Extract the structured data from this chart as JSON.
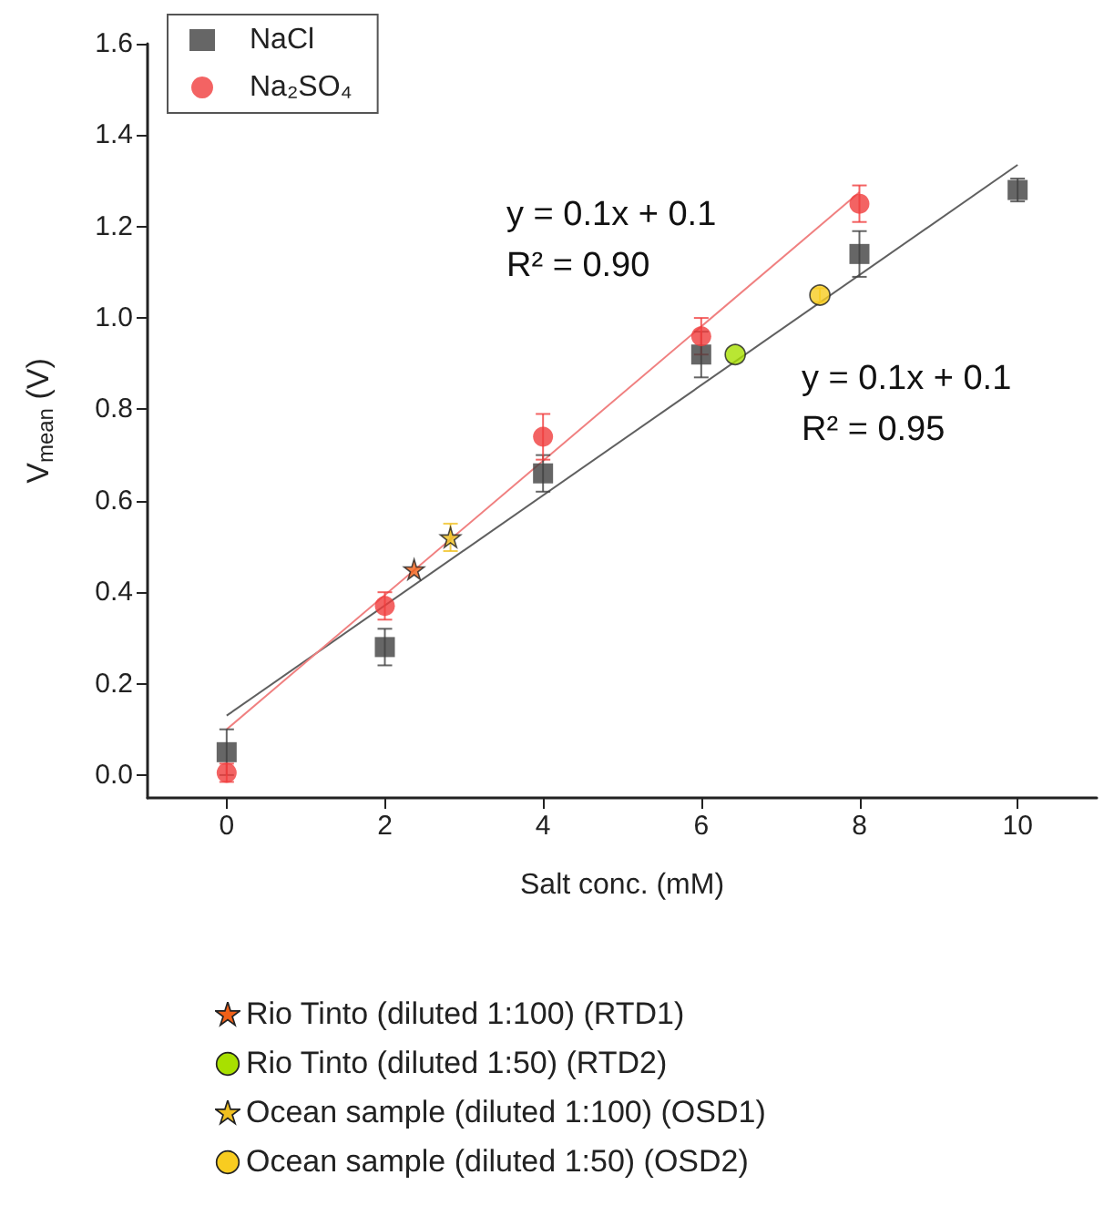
{
  "chart_data": {
    "type": "scatter",
    "xlabel": "Salt conc. (mM)",
    "ylabel": "V$_{mean}$ (V)",
    "x": [
      0,
      2,
      4,
      6,
      8,
      10
    ],
    "xlim": [
      -1,
      11
    ],
    "xticks": [
      0,
      2,
      4,
      6,
      8,
      10
    ],
    "ylim": [
      -0.05,
      1.6
    ],
    "yticks": [
      {
        "value": 0,
        "label": "0.0"
      },
      {
        "value": 0.2,
        "label": "0.2"
      },
      {
        "value": 0.4,
        "label": "0.4"
      },
      {
        "value": 0.6,
        "label": "0.6"
      },
      {
        "value": 0.8,
        "label": "0.8"
      },
      {
        "value": 1.0,
        "label": "1.0"
      },
      {
        "value": 1.2,
        "label": "1.2"
      },
      {
        "value": 1.4,
        "label": "1.4"
      },
      {
        "value": 1.6,
        "label": "1.6"
      }
    ],
    "legend": "bottom left",
    "grid": false,
    "series": [
      {
        "name": "NaCl",
        "color": "#404040",
        "marker": "square",
        "values": [
          0.05,
          0.28,
          0.66,
          0.92,
          1.14,
          1.28
        ],
        "errors": [
          0.05,
          0.04,
          0.04,
          0.05,
          0.05,
          0.025
        ]
      },
      {
        "name": "Na₂SO₄",
        "color": "#f03c3c",
        "marker": "circle",
        "values": [
          0.005,
          0.37,
          0.74,
          0.96,
          1.25,
          null
        ],
        "errors": [
          0.02,
          0.03,
          0.05,
          0.04,
          0.04,
          null
        ]
      },
      {
        "type": "line",
        "color": "#606060",
        "marker": "none",
        "x": [
          0,
          10
        ],
        "values": [
          0.13,
          1.335
        ]
      },
      {
        "type": "line",
        "color": "#f08080",
        "marker": "none",
        "x": [
          0,
          8
        ],
        "values": [
          0.1,
          1.275
        ]
      },
      {
        "name": "Rio Tinto (diluted 1:100) (RTD1)",
        "color": "#f06018",
        "marker": "star",
        "x": [
          2.37
        ],
        "values": [
          0.45
        ]
      },
      {
        "name": "Rio Tinto (diluted 1:50) (RTD2)",
        "color": "#a8e000",
        "marker": "circle",
        "x": [
          6.43
        ],
        "values": [
          0.92
        ]
      },
      {
        "name": "Ocean sample (diluted 1:100) (OSD1)",
        "color": "#f0c020",
        "marker": "star",
        "x": [
          2.83
        ],
        "values": [
          0.52
        ],
        "errors": [
          0.03
        ]
      },
      {
        "name": "Ocean sample (diluted 1:50) (OSD2)",
        "color": "#f8cc20",
        "marker": "circle",
        "x": [
          7.5
        ],
        "values": [
          1.05
        ],
        "errors": [
          0.015
        ]
      }
    ],
    "annotations": [
      "y = 0.1x + 0.1\nR² = 0.90",
      "y = 0.1x + 0.1\nR² = 0.95"
    ]
  }
}
